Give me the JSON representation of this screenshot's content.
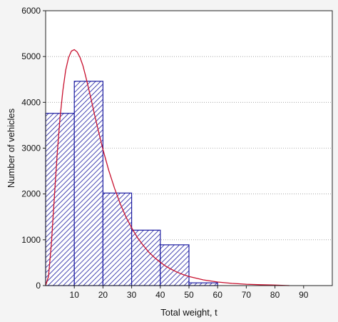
{
  "chart_data": {
    "type": "bar",
    "title": "",
    "xlabel": "Total weight, t",
    "ylabel": "Number of vehicles",
    "xlim": [
      0,
      100
    ],
    "ylim": [
      0,
      6000
    ],
    "x_ticks": [
      10,
      20,
      30,
      40,
      50,
      60,
      70,
      80,
      90
    ],
    "y_ticks": [
      0,
      1000,
      2000,
      3000,
      4000,
      5000,
      6000
    ],
    "grid": "horizontal dotted",
    "bins": [
      {
        "start": 0,
        "end": 10,
        "value": 3760
      },
      {
        "start": 10,
        "end": 20,
        "value": 4460
      },
      {
        "start": 20,
        "end": 30,
        "value": 2020
      },
      {
        "start": 30,
        "end": 40,
        "value": 1210
      },
      {
        "start": 40,
        "end": 50,
        "value": 890
      },
      {
        "start": 50,
        "end": 60,
        "value": 60
      },
      {
        "start": 60,
        "end": 70,
        "value": 0
      },
      {
        "start": 70,
        "end": 80,
        "value": 0
      },
      {
        "start": 80,
        "end": 90,
        "value": 0
      },
      {
        "start": 90,
        "end": 100,
        "value": 0
      }
    ],
    "fit_curve": {
      "type": "lognormal-like",
      "peak_x": 9.5,
      "peak_y": 5150,
      "points": [
        [
          0,
          0
        ],
        [
          1,
          200
        ],
        [
          2,
          900
        ],
        [
          3,
          1900
        ],
        [
          4,
          2850
        ],
        [
          5,
          3650
        ],
        [
          6,
          4250
        ],
        [
          7,
          4700
        ],
        [
          8,
          4980
        ],
        [
          9,
          5120
        ],
        [
          10,
          5150
        ],
        [
          11,
          5100
        ],
        [
          12,
          4980
        ],
        [
          13,
          4800
        ],
        [
          14,
          4560
        ],
        [
          15,
          4300
        ],
        [
          16,
          4030
        ],
        [
          17,
          3750
        ],
        [
          18,
          3480
        ],
        [
          19,
          3220
        ],
        [
          20,
          2970
        ],
        [
          22,
          2520
        ],
        [
          24,
          2130
        ],
        [
          26,
          1790
        ],
        [
          28,
          1500
        ],
        [
          30,
          1260
        ],
        [
          32,
          1050
        ],
        [
          34,
          880
        ],
        [
          36,
          730
        ],
        [
          38,
          610
        ],
        [
          40,
          510
        ],
        [
          42,
          420
        ],
        [
          44,
          350
        ],
        [
          46,
          290
        ],
        [
          48,
          240
        ],
        [
          50,
          200
        ],
        [
          55,
          125
        ],
        [
          60,
          78
        ],
        [
          65,
          48
        ],
        [
          70,
          30
        ],
        [
          75,
          18
        ],
        [
          80,
          11
        ],
        [
          85,
          0
        ]
      ]
    },
    "colors": {
      "bar_fill": "#1a1aa0",
      "bar_stroke": "#1a1aa0",
      "curve": "#c8102e",
      "grid": "#9a9a9a",
      "plot_bg": "#ffffff"
    }
  }
}
